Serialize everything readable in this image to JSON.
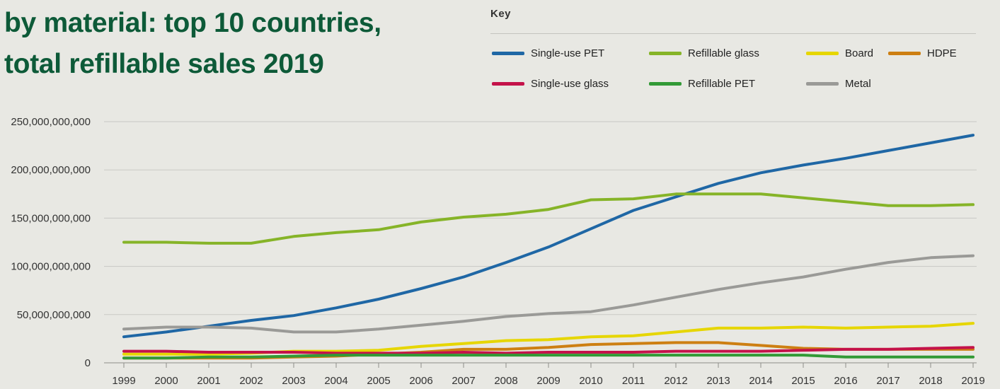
{
  "title": {
    "line1": "by material: top 10 countries,",
    "line2": "total refillable sales 2019"
  },
  "legend": {
    "heading": "Key"
  },
  "chart_data": {
    "type": "line",
    "title": "by material: top 10 countries, total refillable sales 2019",
    "xlabel": "",
    "ylabel": "",
    "x": [
      "1999",
      "2000",
      "2001",
      "2002",
      "2003",
      "2004",
      "2005",
      "2006",
      "2007",
      "2008",
      "2009",
      "2010",
      "2011",
      "2012",
      "2013",
      "2014",
      "2015",
      "2016",
      "2017",
      "2018",
      "2019"
    ],
    "ylim": [
      0,
      250000000000
    ],
    "yticks": [
      0,
      50000000000,
      100000000000,
      150000000000,
      200000000000,
      250000000000
    ],
    "ytick_labels": [
      "0",
      "50,000,000,000",
      "100,000,000,000",
      "150,000,000,000",
      "200,000,000,000",
      "250,000,000,000"
    ],
    "grid": true,
    "legend_position": "top-right",
    "series": [
      {
        "name": "Single-use PET",
        "color": "#1f67a5",
        "values": [
          27000000000,
          32000000000,
          38000000000,
          44000000000,
          49000000000,
          57000000000,
          66000000000,
          77000000000,
          89000000000,
          104000000000,
          120000000000,
          139000000000,
          158000000000,
          172000000000,
          186000000000,
          197000000000,
          205000000000,
          212000000000,
          220000000000,
          228000000000,
          236000000000
        ]
      },
      {
        "name": "Refillable glass",
        "color": "#86b428",
        "values": [
          125000000000,
          125000000000,
          124000000000,
          124000000000,
          131000000000,
          135000000000,
          138000000000,
          146000000000,
          151000000000,
          154000000000,
          159000000000,
          169000000000,
          170000000000,
          175000000000,
          175000000000,
          175000000000,
          171000000000,
          167000000000,
          163000000000,
          163000000000,
          164000000000
        ]
      },
      {
        "name": "Board",
        "color": "#e6d600",
        "values": [
          9000000000,
          9000000000,
          9000000000,
          10000000000,
          12000000000,
          12000000000,
          13000000000,
          17000000000,
          20000000000,
          23000000000,
          24000000000,
          27000000000,
          28000000000,
          32000000000,
          36000000000,
          36000000000,
          37000000000,
          36000000000,
          37000000000,
          38000000000,
          41000000000
        ]
      },
      {
        "name": "HDPE",
        "color": "#cd7f12",
        "values": [
          5000000000,
          5000000000,
          5000000000,
          5000000000,
          6000000000,
          7000000000,
          9000000000,
          11000000000,
          14000000000,
          14000000000,
          16000000000,
          19000000000,
          20000000000,
          21000000000,
          21000000000,
          18000000000,
          15000000000,
          14000000000,
          14000000000,
          14000000000,
          14000000000
        ]
      },
      {
        "name": "Single-use glass",
        "color": "#c4124a",
        "values": [
          12000000000,
          12000000000,
          11000000000,
          11000000000,
          11000000000,
          10000000000,
          10000000000,
          10000000000,
          11000000000,
          10000000000,
          11000000000,
          11000000000,
          11000000000,
          12000000000,
          12000000000,
          12000000000,
          13000000000,
          14000000000,
          14000000000,
          15000000000,
          16000000000
        ]
      },
      {
        "name": "Refillable PET",
        "color": "#329a36",
        "values": [
          5000000000,
          5000000000,
          6000000000,
          6000000000,
          7000000000,
          8000000000,
          8000000000,
          8000000000,
          8000000000,
          8000000000,
          8000000000,
          8000000000,
          8000000000,
          8000000000,
          8000000000,
          8000000000,
          8000000000,
          6000000000,
          6000000000,
          6000000000,
          6000000000
        ]
      },
      {
        "name": "Metal",
        "color": "#9a9a97",
        "values": [
          35000000000,
          37000000000,
          37000000000,
          36000000000,
          32000000000,
          32000000000,
          35000000000,
          39000000000,
          43000000000,
          48000000000,
          51000000000,
          53000000000,
          60000000000,
          68000000000,
          76000000000,
          83000000000,
          89000000000,
          97000000000,
          104000000000,
          109000000000,
          111000000000
        ]
      }
    ]
  }
}
